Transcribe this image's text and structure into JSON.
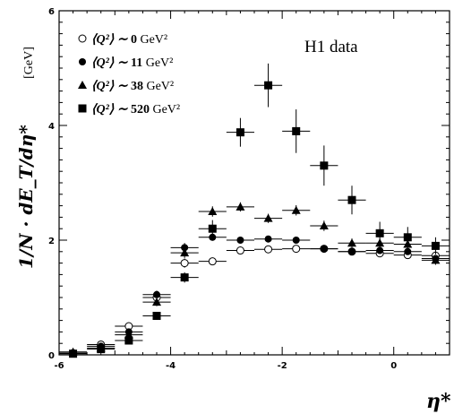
{
  "chart_data": {
    "type": "scatter",
    "title": "",
    "annotation": "H1 data",
    "xlabel": "η*",
    "ylabel": "1/N · dE_T/dη*",
    "ylabel_unit": "[GeV]",
    "xlim": [
      -6,
      1
    ],
    "ylim": [
      0,
      6
    ],
    "x_ticks": [
      -6,
      -4,
      -2,
      0
    ],
    "y_ticks": [
      0,
      2,
      4,
      6
    ],
    "legend_position": "top-left",
    "series": [
      {
        "name": "⟨Q²⟩ ∼ 0 GeV²",
        "name_parts": {
          "prefix": "⟨Q²⟩ ∼ ",
          "value": "0",
          "unit": " GeV²"
        },
        "marker": "open-circle",
        "x": [
          -5.75,
          -5.25,
          -4.75,
          -4.25,
          -3.75,
          -3.25,
          -2.75,
          -2.25,
          -1.75,
          -1.25,
          -0.75,
          -0.25,
          0.25,
          0.75
        ],
        "y": [
          0.03,
          0.18,
          0.5,
          1.0,
          1.6,
          1.63,
          1.82,
          1.84,
          1.85,
          1.85,
          1.8,
          1.77,
          1.74,
          1.73
        ],
        "yerr": [
          0.02,
          0.03,
          0.04,
          0.06,
          0.08,
          0.05,
          0.04,
          0.04,
          0.05,
          0.05,
          0.05,
          0.05,
          0.05,
          0.06
        ]
      },
      {
        "name": "⟨Q²⟩ ∼ 11 GeV²",
        "name_parts": {
          "prefix": "⟨Q²⟩ ∼ ",
          "value": "11",
          "unit": " GeV²"
        },
        "marker": "filled-circle",
        "x": [
          -5.75,
          -5.25,
          -4.75,
          -4.25,
          -3.75,
          -3.25,
          -2.75,
          -2.25,
          -1.75,
          -1.25,
          -0.75,
          -0.25,
          0.25,
          0.75
        ],
        "y": [
          0.03,
          0.15,
          0.4,
          1.05,
          1.87,
          2.05,
          2.0,
          2.02,
          2.0,
          1.85,
          1.8,
          1.82,
          1.8,
          1.68
        ],
        "yerr": [
          0.02,
          0.03,
          0.05,
          0.07,
          0.08,
          0.06,
          0.05,
          0.05,
          0.05,
          0.05,
          0.05,
          0.05,
          0.05,
          0.06
        ]
      },
      {
        "name": "⟨Q²⟩ ∼ 38 GeV²",
        "name_parts": {
          "prefix": "⟨Q²⟩ ∼ ",
          "value": "38",
          "unit": " GeV²"
        },
        "marker": "filled-triangle",
        "x": [
          -5.75,
          -5.25,
          -4.75,
          -4.25,
          -3.75,
          -3.25,
          -2.75,
          -2.25,
          -1.75,
          -1.25,
          -0.75,
          -0.25,
          0.25,
          0.75
        ],
        "y": [
          0.05,
          0.12,
          0.35,
          0.92,
          1.78,
          2.5,
          2.58,
          2.38,
          2.52,
          2.25,
          1.95,
          1.95,
          1.93,
          1.65
        ],
        "yerr": [
          0.02,
          0.03,
          0.05,
          0.07,
          0.09,
          0.09,
          0.08,
          0.08,
          0.09,
          0.09,
          0.08,
          0.08,
          0.08,
          0.08
        ]
      },
      {
        "name": "⟨Q²⟩ ∼ 520 GeV²",
        "name_parts": {
          "prefix": "⟨Q²⟩ ∼ ",
          "value": "520",
          "unit": " GeV²"
        },
        "marker": "filled-square",
        "x": [
          -5.75,
          -5.25,
          -4.75,
          -4.25,
          -3.75,
          -3.25,
          -2.75,
          -2.25,
          -1.75,
          -1.25,
          -0.75,
          -0.25,
          0.25,
          0.75
        ],
        "y": [
          0.02,
          0.1,
          0.25,
          0.68,
          1.35,
          2.2,
          3.88,
          4.7,
          3.9,
          3.3,
          2.7,
          2.12,
          2.05,
          1.9
        ],
        "yerr": [
          0.02,
          0.03,
          0.05,
          0.07,
          0.09,
          0.15,
          0.25,
          0.38,
          0.38,
          0.35,
          0.25,
          0.2,
          0.18,
          0.15
        ]
      }
    ],
    "bin_half_width": 0.25
  }
}
